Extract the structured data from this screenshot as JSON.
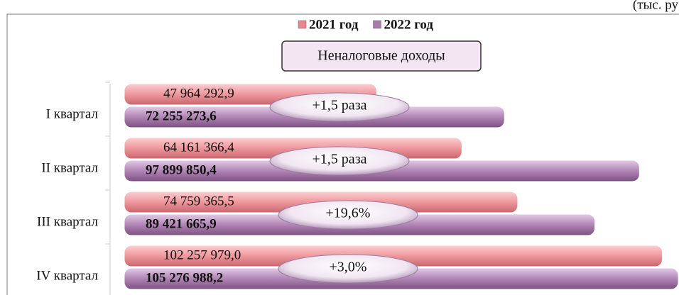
{
  "chart_data": {
    "type": "bar",
    "orientation": "horizontal",
    "title": "Неналоговые доходы",
    "unit_note": "(тыс. ру",
    "categories": [
      "I квартал",
      "II квартал",
      "III квартал",
      "IV квартал"
    ],
    "series": [
      {
        "name": "2021 год",
        "color": "#e8868c",
        "values": [
          47964292.9,
          64161366.4,
          74759365.5,
          102257979.0
        ],
        "value_labels": [
          "47 964 292,9",
          "64 161 366,4",
          "74 759 365,5",
          "102 257 979,0"
        ]
      },
      {
        "name": "2022 год",
        "color": "#a87aac",
        "values": [
          72255273.6,
          97899850.4,
          89421665.9,
          105276988.2
        ],
        "value_labels": [
          "72 255 273,6",
          "97 899 850,4",
          "89 421 665,9",
          "105 276 988,2"
        ]
      }
    ],
    "annotations": [
      "+1,5 раза",
      "+1,5 раза",
      "+19,6%",
      "+3,0%"
    ]
  }
}
